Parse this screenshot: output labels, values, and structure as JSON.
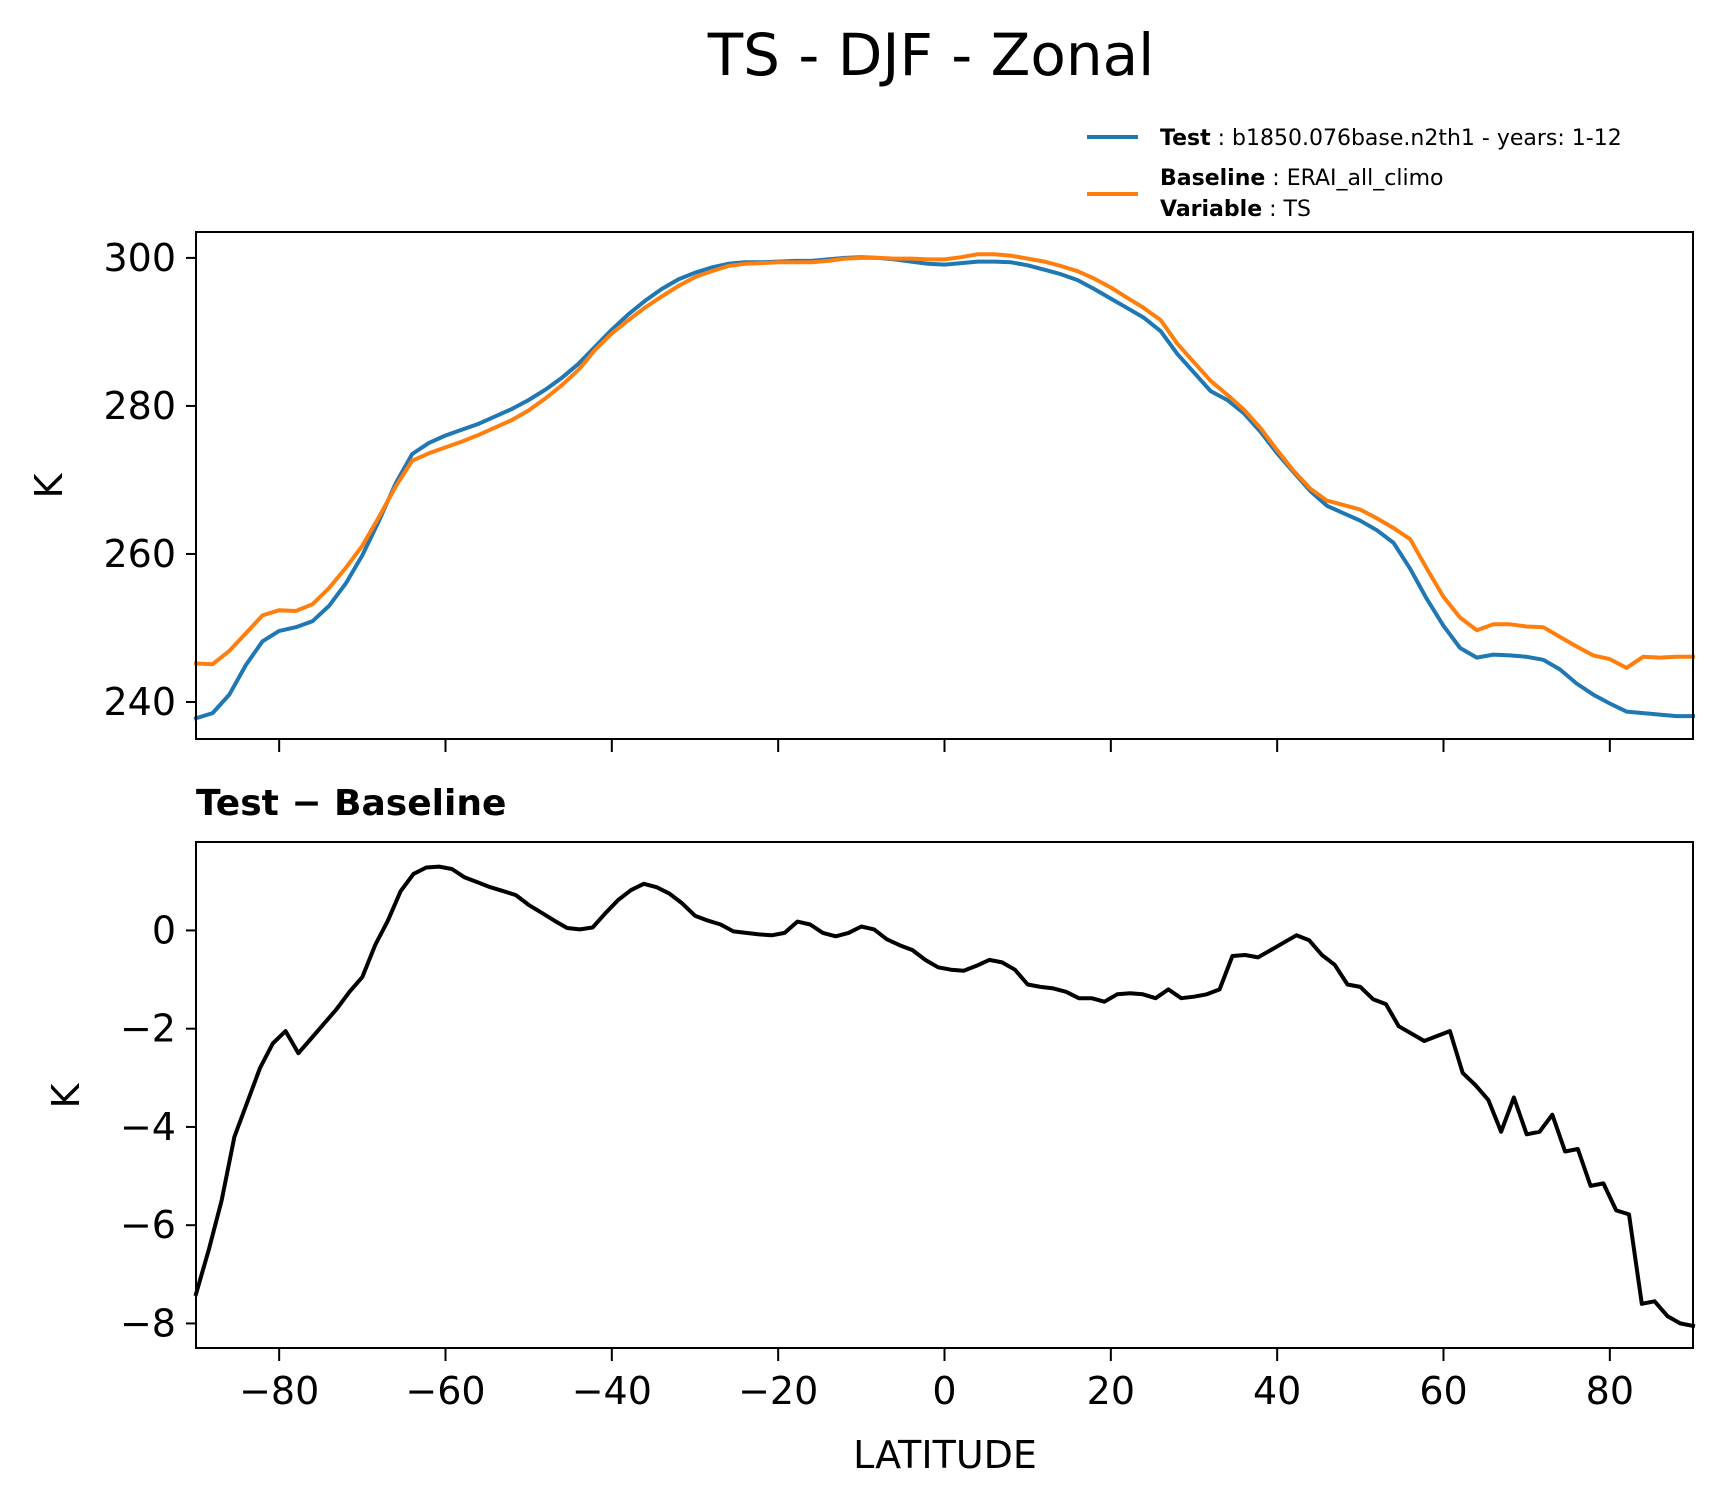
{
  "chart_data": [
    {
      "type": "line",
      "title": "TS - DJF - Zonal",
      "ylabel": "K",
      "xlim": [
        -90,
        90
      ],
      "ylim": [
        235,
        303.5
      ],
      "yticks": [
        "240",
        "260",
        "280",
        "300"
      ],
      "legend": {
        "placement": "above-right",
        "entries": [
          {
            "key": "Test",
            "value": "b1850.076base.n2th1 - years: 1-12"
          },
          {
            "key": "Baseline",
            "value": "ERAI_all_climo"
          },
          {
            "key": "Variable",
            "value": "TS"
          }
        ]
      },
      "x": [
        -90,
        -88,
        -86,
        -84,
        -82,
        -80,
        -78,
        -76,
        -74,
        -72,
        -70,
        -68,
        -66,
        -64,
        -62,
        -60,
        -58,
        -56,
        -54,
        -52,
        -50,
        -48,
        -46,
        -44,
        -42,
        -40,
        -38,
        -36,
        -34,
        -32,
        -30,
        -28,
        -26,
        -24,
        -22,
        -20,
        -18,
        -16,
        -14,
        -12,
        -10,
        -8,
        -6,
        -4,
        -2,
        0,
        2,
        4,
        6,
        8,
        10,
        12,
        14,
        16,
        18,
        20,
        22,
        24,
        26,
        28,
        30,
        32,
        34,
        36,
        38,
        40,
        42,
        44,
        46,
        48,
        50,
        52,
        54,
        56,
        58,
        60,
        62,
        64,
        66,
        68,
        70,
        72,
        74,
        76,
        78,
        80,
        82,
        84,
        86,
        88,
        90
      ],
      "series": [
        {
          "name": "Test",
          "color": "#1f77b4",
          "values": [
            237.8,
            238.5,
            241,
            245,
            248.2,
            249.6,
            250.1,
            250.9,
            253,
            256,
            259.8,
            264.5,
            269.5,
            273.5,
            275,
            276,
            276.8,
            277.6,
            278.6,
            279.6,
            280.8,
            282.2,
            283.8,
            285.7,
            288,
            290.3,
            292.4,
            294.2,
            295.8,
            297.1,
            298,
            298.7,
            299.2,
            299.4,
            299.4,
            299.5,
            299.6,
            299.6,
            299.8,
            300,
            300.1,
            300,
            299.8,
            299.5,
            299.2,
            299.1,
            299.3,
            299.5,
            299.5,
            299.4,
            299,
            298.4,
            297.8,
            297,
            295.8,
            294.5,
            293.2,
            291.9,
            290.1,
            287,
            284.5,
            282,
            280.8,
            279,
            276.5,
            273.6,
            271,
            268.5,
            266.5,
            265.5,
            264.5,
            263.2,
            261.5,
            258,
            253.9,
            250.3,
            247.3,
            246,
            246.4,
            246.3,
            246.1,
            245.7,
            244.4,
            242.5,
            241,
            239.8,
            238.7,
            238.5,
            238.3,
            238.1,
            238.1
          ],
          "note": "approximate values read from plot"
        },
        {
          "name": "Baseline",
          "color": "#ff7f0e",
          "values": [
            245.2,
            245.1,
            246.9,
            249.3,
            251.7,
            252.4,
            252.3,
            253.2,
            255.4,
            258.1,
            261.1,
            265,
            269.1,
            272.6,
            273.6,
            274.4,
            275.2,
            276.1,
            277.1,
            278.1,
            279.4,
            281,
            282.8,
            284.9,
            287.6,
            289.8,
            291.6,
            293.3,
            294.8,
            296.2,
            297.4,
            298.2,
            298.9,
            299.2,
            299.3,
            299.4,
            299.4,
            299.4,
            299.6,
            299.9,
            300,
            300,
            299.9,
            299.9,
            299.8,
            299.8,
            300.1,
            300.5,
            300.5,
            300.3,
            299.9,
            299.5,
            298.9,
            298.2,
            297.2,
            296,
            294.6,
            293.2,
            291.6,
            288.4,
            285.9,
            283.4,
            281.5,
            279.5,
            277,
            274,
            271.2,
            268.8,
            267.2,
            266.6,
            266,
            264.8,
            263.5,
            262,
            258,
            254.2,
            251.4,
            249.7,
            250.5,
            250.5,
            250.2,
            250.1,
            248.8,
            247.5,
            246.3,
            245.8,
            244.6,
            246.1,
            246,
            246.1,
            246.1
          ],
          "note": "approximate values read from plot"
        }
      ]
    },
    {
      "type": "line",
      "title": "Test − Baseline",
      "ylabel": "K",
      "xlabel": "LATITUDE",
      "xlim": [
        -90,
        90
      ],
      "ylim": [
        -8.5,
        1.8
      ],
      "yticks": [
        "−8",
        "−6",
        "−4",
        "−2",
        "0"
      ],
      "xticks": [
        "−80",
        "−60",
        "−40",
        "−20",
        "0",
        "20",
        "40",
        "60",
        "80"
      ],
      "series": [
        {
          "name": "Test − Baseline",
          "color": "#000000",
          "values": [
            -7.4,
            -6.5,
            -5.5,
            -4.2,
            -3.5,
            -2.8,
            -2.3,
            -2.05,
            -2.5,
            -2.2,
            -1.9,
            -1.6,
            -1.25,
            -0.95,
            -0.3,
            0.2,
            0.8,
            1.15,
            1.28,
            1.3,
            1.25,
            1.08,
            0.98,
            0.88,
            0.8,
            0.72,
            0.52,
            0.36,
            0.2,
            0.05,
            0.02,
            0.06,
            0.35,
            0.62,
            0.82,
            0.95,
            0.88,
            0.75,
            0.55,
            0.3,
            0.2,
            0.12,
            -0.02,
            -0.05,
            -0.08,
            -0.1,
            -0.05,
            0.18,
            0.12,
            -0.05,
            -0.12,
            -0.05,
            0.08,
            0.02,
            -0.18,
            -0.3,
            -0.4,
            -0.6,
            -0.75,
            -0.8,
            -0.82,
            -0.72,
            -0.6,
            -0.65,
            -0.8,
            -1.1,
            -1.15,
            -1.18,
            -1.25,
            -1.38,
            -1.38,
            -1.45,
            -1.3,
            -1.28,
            -1.3,
            -1.38,
            -1.2,
            -1.38,
            -1.35,
            -1.3,
            -1.2,
            -0.52,
            -0.5,
            -0.55,
            -0.4,
            -0.25,
            -0.1,
            -0.2,
            -0.5,
            -0.7,
            -1.1,
            -1.15,
            -1.4,
            -1.5,
            -1.95,
            -2.1,
            -2.25,
            -2.15,
            -2.05,
            -2.9,
            -3.15,
            -3.45,
            -4.1,
            -3.4,
            -4.15,
            -4.1,
            -3.75,
            -4.5,
            -4.45,
            -5.2,
            -5.15,
            -5.7,
            -5.78,
            -7.6,
            -7.55,
            -7.85,
            -8.0,
            -8.05
          ],
          "note": "approximate values read from plot"
        }
      ]
    }
  ]
}
